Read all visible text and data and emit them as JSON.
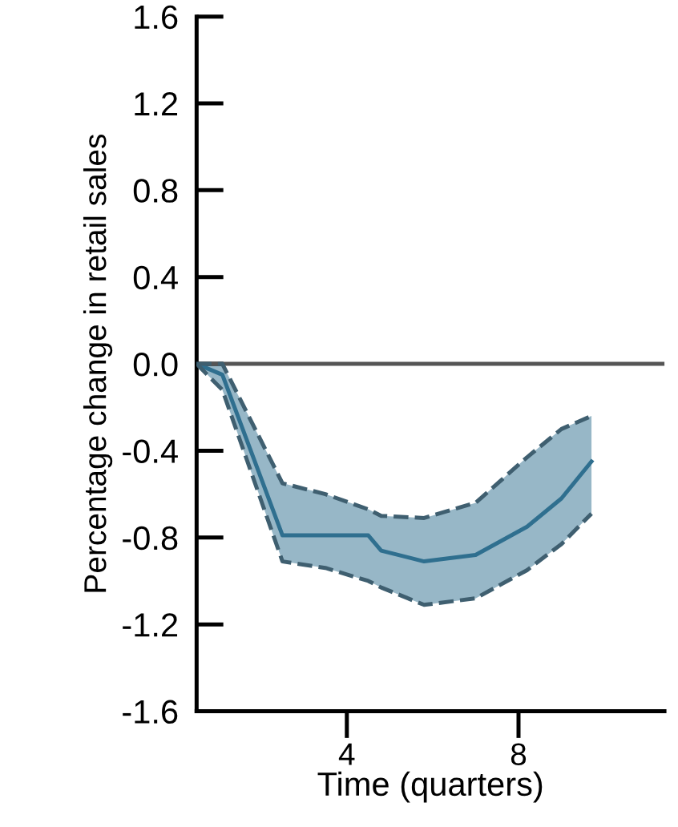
{
  "chart_data": {
    "type": "line",
    "xlabel": "Time (quarters)",
    "ylabel": "Percentage change in retail sales",
    "x": [
      0.5,
      1.1,
      2.5,
      3.5,
      4.5,
      4.8,
      5.8,
      7.0,
      8.2,
      9.0,
      9.7
    ],
    "series": [
      {
        "color": "#2f6f8f",
        "line_style": "solid",
        "values": [
          0,
          -0.05,
          -0.79,
          -0.79,
          -0.79,
          -0.86,
          -0.91,
          -0.88,
          -0.75,
          -0.62,
          -0.45
        ],
        "lower": [
          0,
          -0.12,
          -0.91,
          -0.94,
          -1.0,
          -1.03,
          -1.11,
          -1.08,
          -0.95,
          -0.83,
          -0.69
        ],
        "upper": [
          0,
          0,
          -0.55,
          -0.6,
          -0.67,
          -0.7,
          -0.71,
          -0.64,
          -0.43,
          -0.3,
          -0.24
        ]
      },
      {
        "color": "#3f5f70",
        "line_style": "dashed",
        "values": [
          0,
          -0.12,
          -0.91,
          -0.94,
          -1.0,
          -1.03,
          -1.11,
          -1.08,
          -0.95,
          -0.83,
          -0.69
        ]
      },
      {
        "color": "#3f5f70",
        "line_style": "dashed",
        "values": [
          0,
          0,
          -0.55,
          -0.6,
          -0.67,
          -0.7,
          -0.71,
          -0.64,
          -0.43,
          -0.3,
          -0.24
        ]
      }
    ],
    "xlim": [
      0.5,
      11.4
    ],
    "ylim": [
      -1.6,
      1.6
    ],
    "xticks": [
      4,
      8
    ],
    "yticks": [
      1.6,
      1.2,
      0.8,
      0.4,
      {
        "value": 0,
        "label": "0.0"
      },
      -0.4,
      -0.8,
      -1.2,
      -1.6
    ],
    "ref_lines": [
      {
        "axis": "y",
        "value": 0,
        "color": "#555555",
        "line_style": "solid"
      }
    ],
    "grid": false,
    "legend": false,
    "marker": "none"
  }
}
